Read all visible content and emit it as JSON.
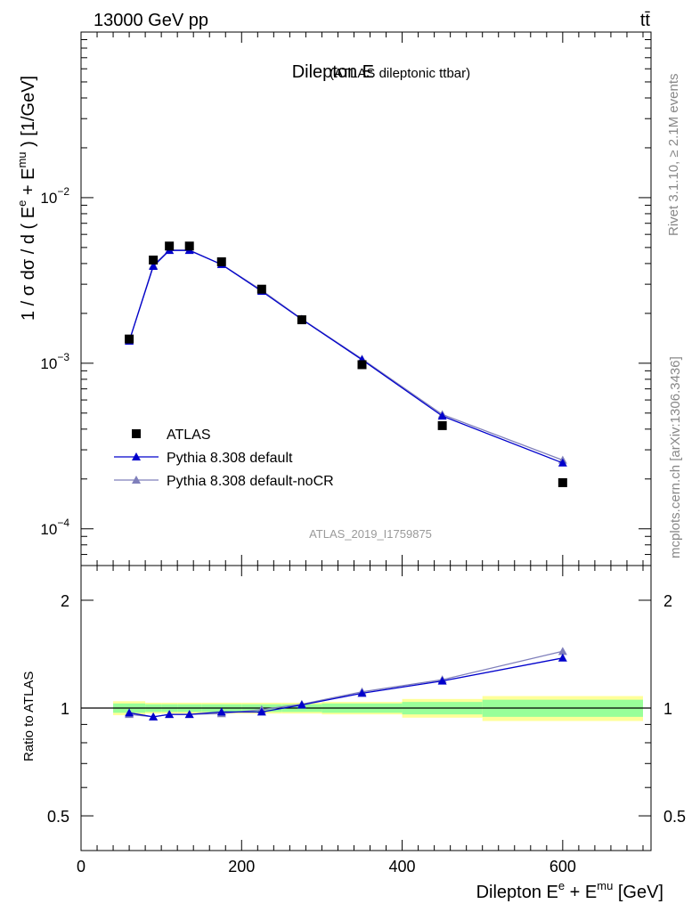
{
  "header": {
    "energy_label": "13000 GeV pp",
    "process_label": "tt̄"
  },
  "side_labels": {
    "rivet": "Rivet 3.1.10, ≥ 2.1M events",
    "mcplots": "mcplots.cern.ch [arXiv:1306.3436]"
  },
  "chart_data": [
    {
      "type": "scatter",
      "title": "Dilepton E",
      "subtitle": "(ATLAS dileptonic ttbar)",
      "analysis_id": "ATLAS_2019_I1759875",
      "ylabel": "1 / σ dσ / d ( E^e + E^mu ) [1/GeV]",
      "y_scale": "log",
      "xlim": [
        0,
        710
      ],
      "ylim": [
        6e-05,
        0.1
      ],
      "x_ticks": [
        0,
        200,
        400,
        600
      ],
      "y_ticks": [
        {
          "value": 0.0001,
          "base": "10",
          "exp": "−4"
        },
        {
          "value": 0.001,
          "base": "10",
          "exp": "−3"
        },
        {
          "value": 0.01,
          "base": "10",
          "exp": "−2"
        }
      ],
      "legend_position": "lower-left",
      "grid": false,
      "bin_edges": [
        40,
        80,
        100,
        120,
        150,
        200,
        250,
        300,
        400,
        500,
        700
      ],
      "x": [
        60,
        90,
        110,
        135,
        175,
        225,
        275,
        350,
        450,
        600
      ],
      "series": [
        {
          "name": "ATLAS",
          "marker": "square",
          "color": "#000000",
          "values": [
            0.0014,
            0.0042,
            0.0051,
            0.0051,
            0.0041,
            0.0028,
            0.00183,
            0.00098,
            0.00042,
            0.00019
          ]
        },
        {
          "name": "Pythia 8.308 default",
          "marker": "triangle",
          "color": "#0000cc",
          "values": [
            0.00136,
            0.00385,
            0.0048,
            0.0048,
            0.00395,
            0.00272,
            0.00184,
            0.00105,
            0.00048,
            0.00025
          ]
        },
        {
          "name": "Pythia 8.308 default-noCR",
          "marker": "triangle",
          "color": "#7f7fbb",
          "values": [
            0.00136,
            0.0039,
            0.00482,
            0.00482,
            0.00395,
            0.00276,
            0.00185,
            0.00106,
            0.00049,
            0.00026
          ]
        }
      ]
    },
    {
      "type": "line",
      "ylabel": "Ratio to ATLAS",
      "xlabel": "Dilepton E^e + E^mu [GeV]",
      "y_scale": "log",
      "xlim": [
        0,
        710
      ],
      "ylim": [
        0.4,
        2.5
      ],
      "x_ticks": [
        "0",
        "200",
        "400",
        "600"
      ],
      "y_ticks": [
        0.5,
        1,
        2
      ],
      "reference_line": 1,
      "uncertainty_bands": {
        "bin_edges": [
          40,
          80,
          100,
          120,
          150,
          200,
          250,
          300,
          400,
          500,
          700
        ],
        "stat_rel": [
          0.03,
          0.025,
          0.025,
          0.025,
          0.025,
          0.025,
          0.025,
          0.03,
          0.04,
          0.055
        ],
        "total_rel": [
          0.045,
          0.035,
          0.035,
          0.035,
          0.035,
          0.035,
          0.035,
          0.04,
          0.06,
          0.08
        ],
        "stat_color": "#99ff99",
        "total_color": "#ffff99"
      },
      "x": [
        60,
        90,
        110,
        135,
        175,
        225,
        275,
        350,
        450,
        600
      ],
      "series": [
        {
          "name": "Pythia 8.308 default",
          "color": "#0000cc",
          "values": [
            0.97,
            0.945,
            0.96,
            0.96,
            0.975,
            0.975,
            1.02,
            1.1,
            1.19,
            1.38
          ]
        },
        {
          "name": "Pythia 8.308 default-noCR",
          "color": "#7f7fbb",
          "values": [
            0.96,
            0.945,
            0.96,
            0.96,
            0.965,
            0.99,
            1.025,
            1.11,
            1.2,
            1.44
          ]
        }
      ]
    }
  ]
}
